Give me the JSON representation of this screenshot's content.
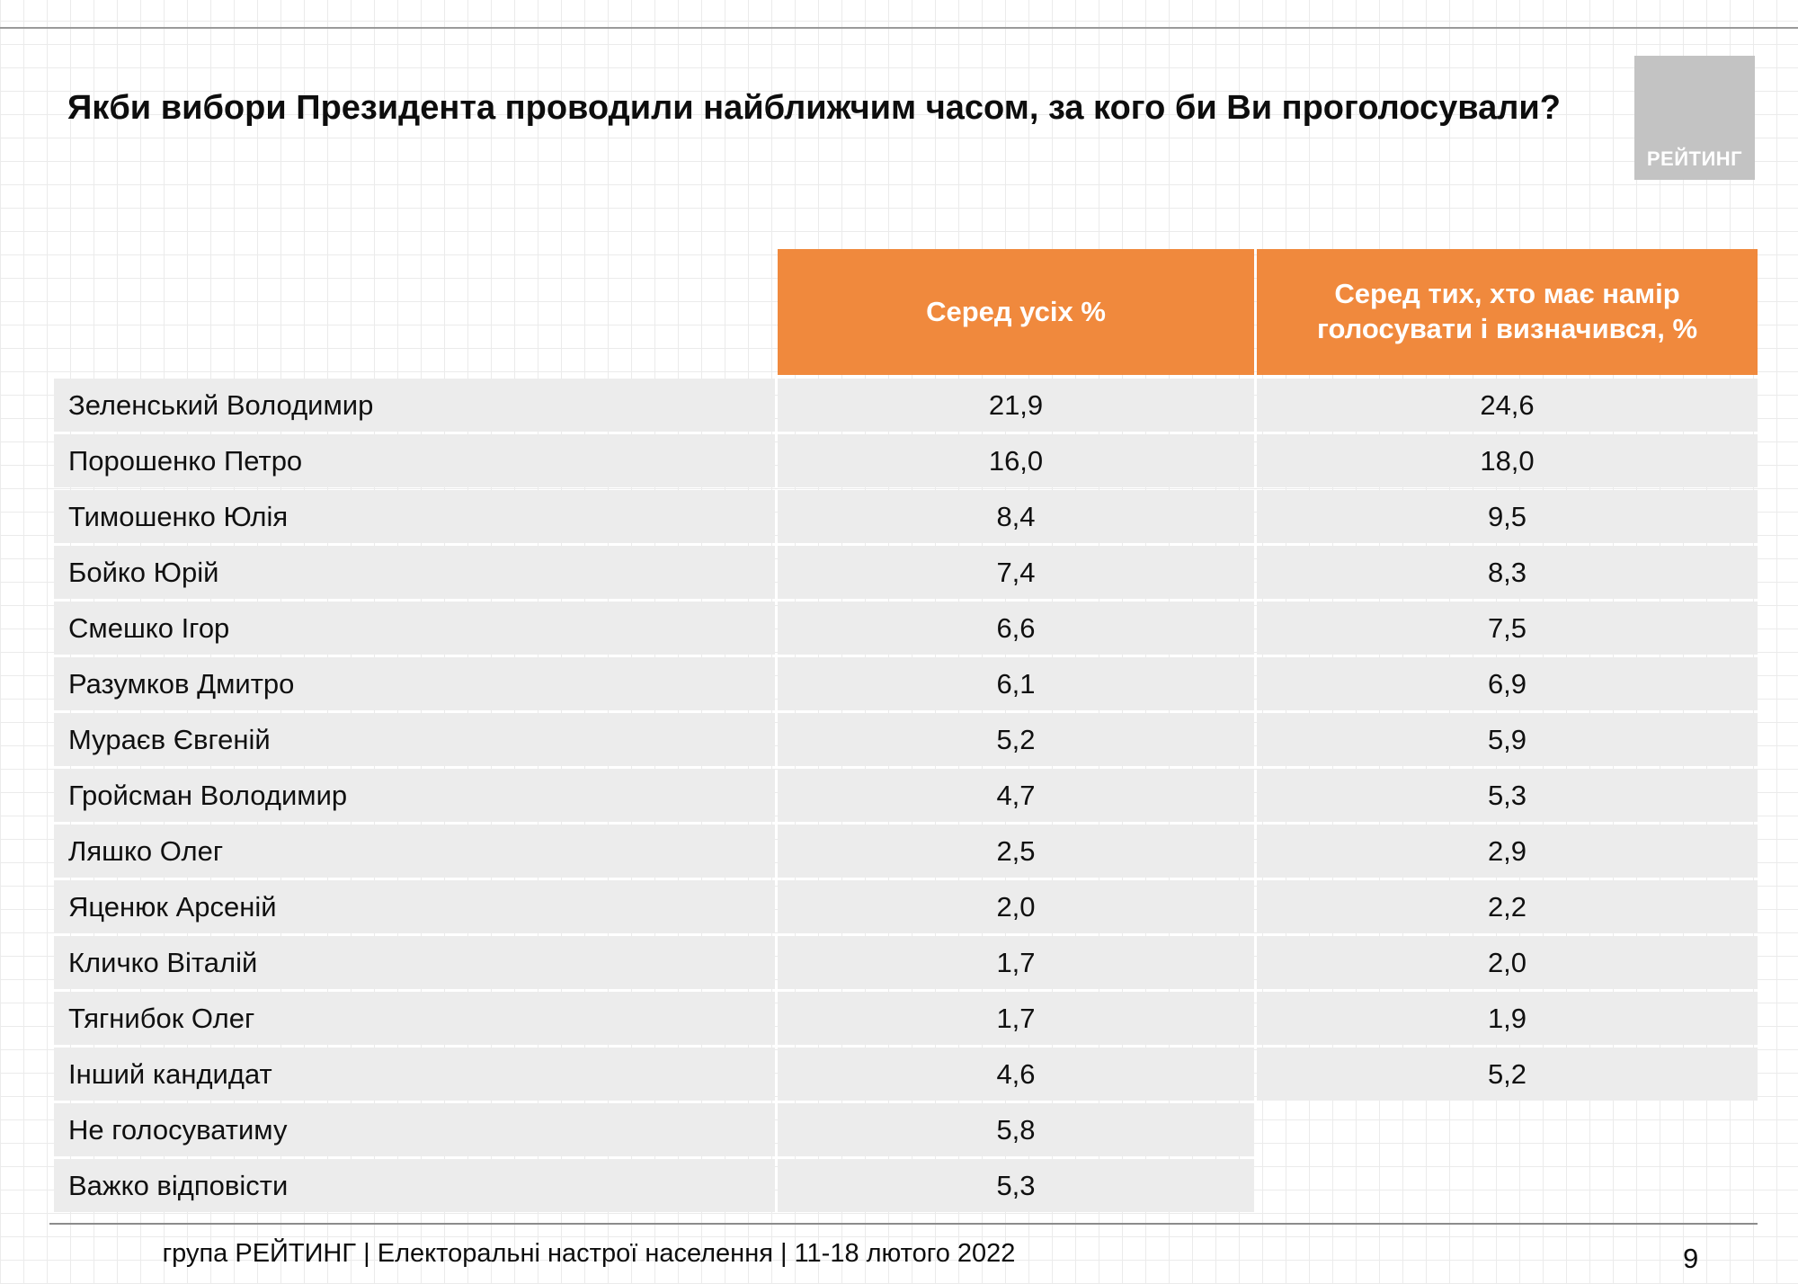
{
  "slide": {
    "title": "Якби вибори Президента проводили найближчим часом, за кого би Ви проголосували?",
    "logo": "РЕЙТИНГ",
    "footer": "група РЕЙТИНГ | Електоральні настрої населення | 11-18 лютого 2022",
    "page_number": "9"
  },
  "colors": {
    "accent": "#F0893D",
    "row_bg": "#ECECEC",
    "logo_bg": "#C3C3C3"
  },
  "chart_data": {
    "type": "table",
    "title": "Якби вибори Президента проводили найближчим часом, за кого би Ви проголосували?",
    "columns": [
      "Серед усіх %",
      "Серед тих, хто має намір голосувати і визначився, %"
    ],
    "rows": [
      {
        "name": "Зеленський Володимир",
        "all": "21,9",
        "decided": "24,6"
      },
      {
        "name": "Порошенко Петро",
        "all": "16,0",
        "decided": "18,0"
      },
      {
        "name": "Тимошенко Юлія",
        "all": "8,4",
        "decided": "9,5"
      },
      {
        "name": "Бойко Юрій",
        "all": "7,4",
        "decided": "8,3"
      },
      {
        "name": "Смешко Ігор",
        "all": "6,6",
        "decided": "7,5"
      },
      {
        "name": "Разумков Дмитро",
        "all": "6,1",
        "decided": "6,9"
      },
      {
        "name": "Мураєв Євгеній",
        "all": "5,2",
        "decided": "5,9"
      },
      {
        "name": "Гройсман Володимир",
        "all": "4,7",
        "decided": "5,3"
      },
      {
        "name": "Ляшко Олег",
        "all": "2,5",
        "decided": "2,9"
      },
      {
        "name": "Яценюк Арсеній",
        "all": "2,0",
        "decided": "2,2"
      },
      {
        "name": "Кличко Віталій",
        "all": "1,7",
        "decided": "2,0"
      },
      {
        "name": "Тягнибок Олег",
        "all": "1,7",
        "decided": "1,9"
      },
      {
        "name": "Інший кандидат",
        "all": "4,6",
        "decided": "5,2"
      },
      {
        "name": "Не голосуватиму",
        "all": "5,8",
        "decided": null
      },
      {
        "name": "Важко відповісти",
        "all": "5,3",
        "decided": null
      }
    ]
  }
}
